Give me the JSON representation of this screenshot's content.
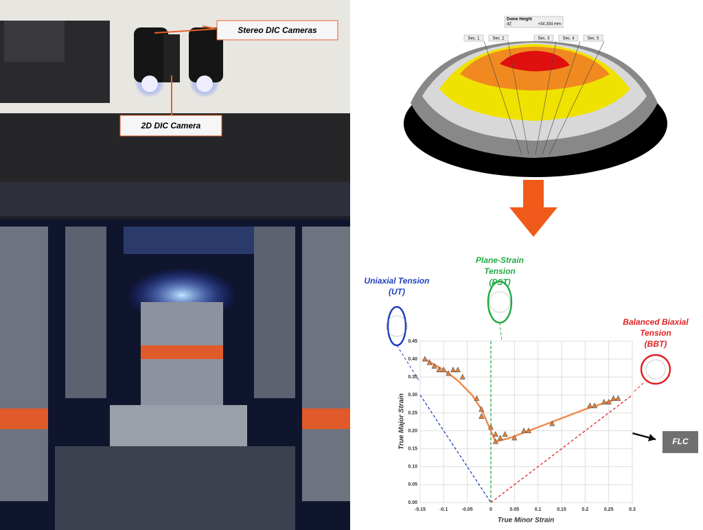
{
  "photo": {
    "labels": [
      "Stereo DIC Cameras",
      "2D DIC Camera"
    ]
  },
  "simulation": {
    "title": "Dome Height",
    "field": "dZ",
    "value": "+34.334 mm",
    "sections": [
      "Sec. 1",
      "Sec. 2",
      "Sec. 3",
      "Sec. 4",
      "Sec. 5"
    ]
  },
  "chart_data": {
    "type": "scatter",
    "x_label": "True Minor Strain",
    "y_label": "True Major Strain",
    "xlim": [
      -0.15,
      0.3
    ],
    "ylim": [
      0,
      0.45
    ],
    "xticks": [
      -0.15,
      -0.1,
      -0.05,
      0,
      0.05,
      0.1,
      0.15,
      0.2,
      0.25,
      0.3
    ],
    "yticks": [
      {
        "value": 0,
        "label": "0.00"
      },
      0.05,
      {
        "value": 0.1,
        "label": "0.10"
      },
      0.15,
      {
        "value": 0.2,
        "label": "0.20"
      },
      0.25,
      {
        "value": 0.3,
        "label": "0.30"
      },
      0.35,
      {
        "value": 0.4,
        "label": "0.40"
      },
      0.45
    ],
    "grid": true,
    "annotations": [
      "Uniaxial Tension (UT)",
      "Plane-Strain Tension (PST)",
      "Balanced Biaxial Tension (BBT)",
      "FLC"
    ],
    "series": [
      {
        "mode": "dashed",
        "color": "#1f3fbf",
        "x": [
          -0.15,
          0
        ],
        "values": [
          0.3,
          0
        ]
      },
      {
        "mode": "dashed",
        "color": "#22aa44",
        "x": [
          0,
          0
        ],
        "values": [
          0,
          0.45
        ]
      },
      {
        "mode": "dashed",
        "color": "#e02020",
        "x": [
          0,
          0.3
        ],
        "values": [
          0,
          0.3
        ]
      },
      {
        "mode": "line",
        "color": "#f08a4b",
        "x": [
          -0.14,
          -0.1,
          -0.07,
          -0.04,
          -0.02,
          0,
          0.01,
          0.04,
          0.08,
          0.12,
          0.2,
          0.27
        ],
        "values": [
          0.4,
          0.37,
          0.34,
          0.3,
          0.26,
          0.2,
          0.17,
          0.18,
          0.2,
          0.22,
          0.26,
          0.29
        ]
      },
      {
        "mode": "markers",
        "color": "#e8823a",
        "x": [
          -0.14,
          -0.13,
          -0.12,
          -0.11,
          -0.1,
          -0.09,
          -0.08,
          -0.07,
          -0.06,
          -0.03,
          -0.02,
          -0.02,
          0,
          0.01,
          0.01,
          0.02,
          0.03,
          0.05,
          0.07,
          0.08,
          0.13,
          0.21,
          0.22,
          0.24,
          0.25,
          0.26,
          0.27
        ],
        "values": [
          0.4,
          0.39,
          0.38,
          0.37,
          0.37,
          0.36,
          0.37,
          0.37,
          0.35,
          0.29,
          0.26,
          0.24,
          0.21,
          0.19,
          0.17,
          0.18,
          0.19,
          0.18,
          0.2,
          0.2,
          0.22,
          0.27,
          0.27,
          0.28,
          0.28,
          0.29,
          0.29
        ]
      }
    ]
  }
}
